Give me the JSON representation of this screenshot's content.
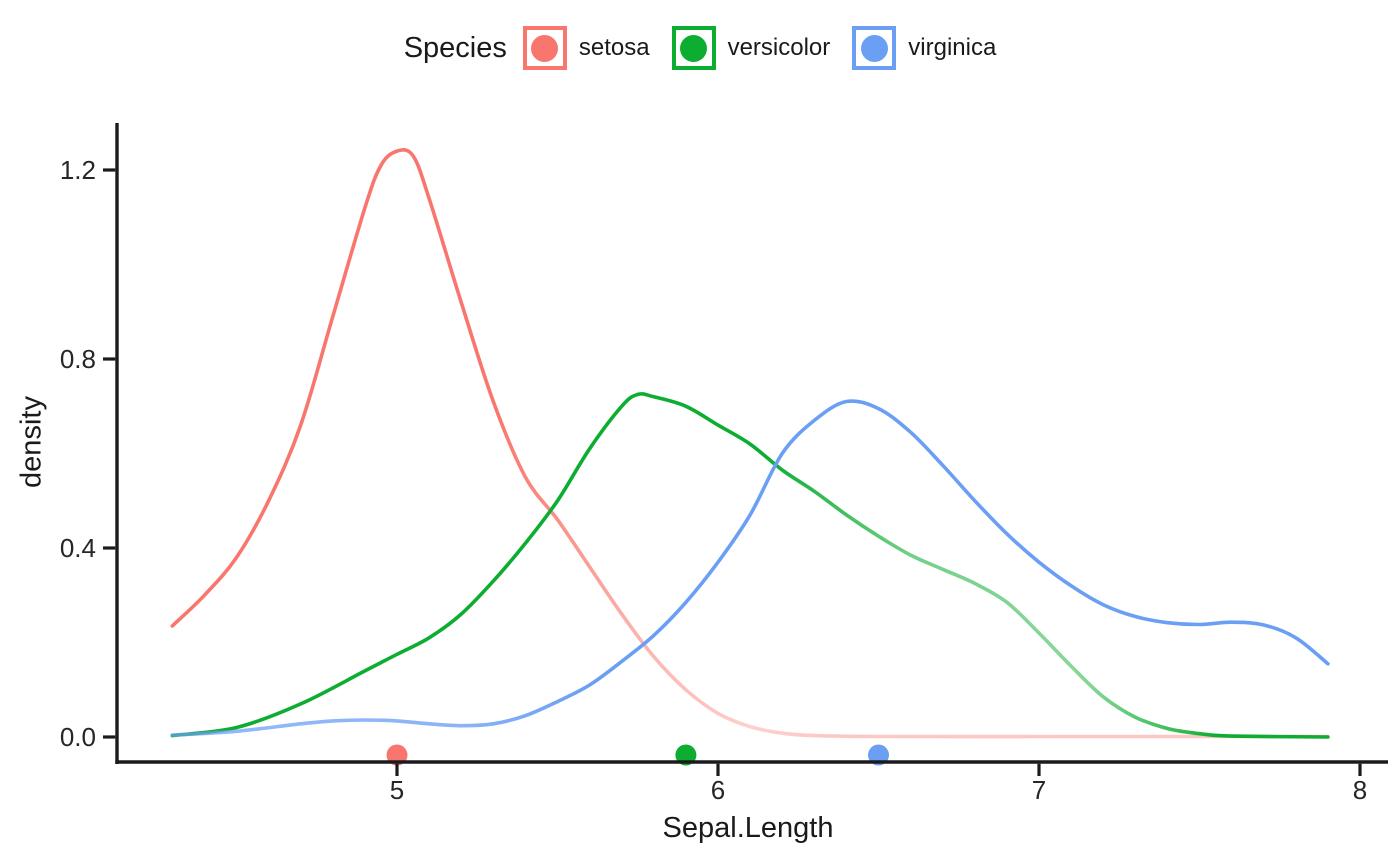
{
  "figure": {
    "background": "#FFFFFF",
    "legend": {
      "title": "Species",
      "items": [
        {
          "name": "setosa",
          "label": "setosa",
          "color": "#F8766D"
        },
        {
          "name": "versicolor",
          "label": "versicolor",
          "color": "#0DAD32"
        },
        {
          "name": "virginica",
          "label": "virginica",
          "color": "#6A9FF4"
        }
      ]
    },
    "x_axis_title": "Sepal.Length",
    "y_axis_title": "density"
  },
  "chart_data": {
    "type": "line",
    "subtype": "kernel-density",
    "title": "",
    "xlabel": "Sepal.Length",
    "ylabel": "density",
    "xlim": [
      4.3,
      7.9
    ],
    "ylim": [
      0,
      1.3
    ],
    "x_ticks": [
      5,
      6,
      7,
      8
    ],
    "x_tick_labels": [
      "5",
      "6",
      "7",
      "8"
    ],
    "y_ticks": [
      0.0,
      0.4,
      0.8,
      1.2
    ],
    "y_tick_labels": [
      "0.0",
      "0.4",
      "0.8",
      "1.2"
    ],
    "grid": false,
    "legend_position": "top",
    "axis_color": "#1B1B1B",
    "series": [
      {
        "name": "setosa",
        "color": "#F8766D",
        "median": 5.0,
        "x": [
          4.3,
          4.4,
          4.5,
          4.6,
          4.7,
          4.8,
          4.9,
          4.95,
          5.0,
          5.05,
          5.1,
          5.2,
          5.3,
          5.4,
          5.5,
          5.6,
          5.7,
          5.8,
          5.9,
          6.0,
          6.1,
          6.2,
          6.3,
          6.5,
          7.0,
          7.5,
          7.9
        ],
        "y": [
          0.235,
          0.3,
          0.38,
          0.5,
          0.66,
          0.89,
          1.12,
          1.21,
          1.24,
          1.23,
          1.14,
          0.92,
          0.71,
          0.55,
          0.46,
          0.36,
          0.26,
          0.17,
          0.1,
          0.05,
          0.022,
          0.008,
          0.003,
          0.001,
          0.001,
          0.001,
          0.001
        ],
        "fade": [
          [
            4.3,
            1
          ],
          [
            5.3,
            1
          ],
          [
            5.75,
            0.55
          ],
          [
            6.1,
            0.34
          ],
          [
            6.35,
            0.4
          ],
          [
            7.9,
            0.42
          ]
        ]
      },
      {
        "name": "versicolor",
        "color": "#0DAD32",
        "median": 5.9,
        "x": [
          4.3,
          4.5,
          4.7,
          4.9,
          5.0,
          5.1,
          5.2,
          5.3,
          5.4,
          5.5,
          5.6,
          5.7,
          5.75,
          5.8,
          5.9,
          6.0,
          6.1,
          6.2,
          6.3,
          6.4,
          6.5,
          6.6,
          6.7,
          6.8,
          6.9,
          7.0,
          7.1,
          7.2,
          7.3,
          7.4,
          7.5,
          7.6,
          7.9
        ],
        "y": [
          0.003,
          0.02,
          0.07,
          0.14,
          0.175,
          0.21,
          0.26,
          0.33,
          0.41,
          0.5,
          0.61,
          0.7,
          0.725,
          0.72,
          0.7,
          0.66,
          0.62,
          0.565,
          0.52,
          0.47,
          0.425,
          0.385,
          0.355,
          0.325,
          0.285,
          0.22,
          0.15,
          0.085,
          0.042,
          0.018,
          0.007,
          0.002,
          0.0
        ],
        "fade": [
          [
            4.3,
            1
          ],
          [
            6.15,
            1
          ],
          [
            6.6,
            0.58
          ],
          [
            7.0,
            0.5
          ],
          [
            7.15,
            0.5
          ],
          [
            7.45,
            0.85
          ],
          [
            7.55,
            1
          ],
          [
            7.9,
            1
          ]
        ]
      },
      {
        "name": "virginica",
        "color": "#6A9FF4",
        "median": 6.5,
        "x": [
          4.3,
          4.5,
          4.7,
          4.8,
          4.9,
          5.0,
          5.1,
          5.2,
          5.3,
          5.4,
          5.5,
          5.6,
          5.7,
          5.8,
          5.9,
          6.0,
          6.1,
          6.2,
          6.3,
          6.4,
          6.5,
          6.6,
          6.7,
          6.8,
          6.9,
          7.0,
          7.1,
          7.2,
          7.3,
          7.4,
          7.5,
          7.6,
          7.7,
          7.8,
          7.9
        ],
        "y": [
          0.004,
          0.012,
          0.028,
          0.034,
          0.036,
          0.034,
          0.028,
          0.024,
          0.028,
          0.045,
          0.075,
          0.11,
          0.16,
          0.215,
          0.285,
          0.37,
          0.47,
          0.6,
          0.67,
          0.71,
          0.695,
          0.645,
          0.575,
          0.5,
          0.43,
          0.37,
          0.32,
          0.28,
          0.255,
          0.242,
          0.238,
          0.243,
          0.237,
          0.21,
          0.155
        ],
        "fade": [
          [
            4.3,
            0.72
          ],
          [
            5.2,
            0.78
          ],
          [
            5.6,
            1
          ],
          [
            7.9,
            1
          ]
        ]
      }
    ]
  }
}
